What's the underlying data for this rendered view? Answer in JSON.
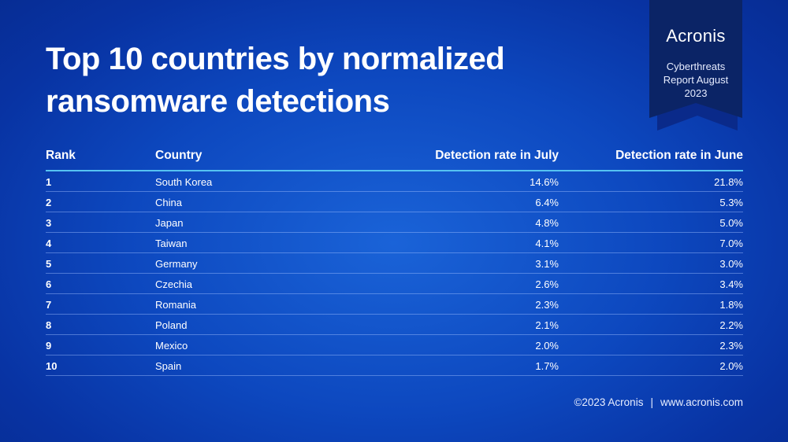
{
  "title_lines": [
    "Top 10 countries by normalized",
    "ransomware detections"
  ],
  "badge": {
    "brand": "Acronis",
    "subtitle_lines": [
      "Cyberthreats",
      "Report August",
      "2023"
    ]
  },
  "table": {
    "headers": {
      "rank": "Rank",
      "country": "Country",
      "july": "Detection rate in July",
      "june": "Detection rate in June"
    },
    "rows": [
      {
        "rank": "1",
        "country": "South Korea",
        "july": "14.6%",
        "june": "21.8%"
      },
      {
        "rank": "2",
        "country": "China",
        "july": "6.4%",
        "june": "5.3%"
      },
      {
        "rank": "3",
        "country": "Japan",
        "july": "4.8%",
        "june": "5.0%"
      },
      {
        "rank": "4",
        "country": "Taiwan",
        "july": "4.1%",
        "june": "7.0%"
      },
      {
        "rank": "5",
        "country": "Germany",
        "july": "3.1%",
        "june": "3.0%"
      },
      {
        "rank": "6",
        "country": "Czechia",
        "july": "2.6%",
        "june": "3.4%"
      },
      {
        "rank": "7",
        "country": "Romania",
        "july": "2.3%",
        "june": "1.8%"
      },
      {
        "rank": "8",
        "country": "Poland",
        "july": "2.1%",
        "june": "2.2%"
      },
      {
        "rank": "9",
        "country": "Mexico",
        "july": "2.0%",
        "june": "2.3%"
      },
      {
        "rank": "10",
        "country": "Spain",
        "july": "1.7%",
        "june": "2.0%"
      }
    ]
  },
  "footer": {
    "copyright": "©2023 Acronis",
    "separator": "|",
    "website": "www.acronis.com"
  },
  "colors": {
    "background": "#0d48bf",
    "badge_front": "#0b2466",
    "badge_back": "#0a2a8a",
    "header_rule": "#56c3f2"
  }
}
